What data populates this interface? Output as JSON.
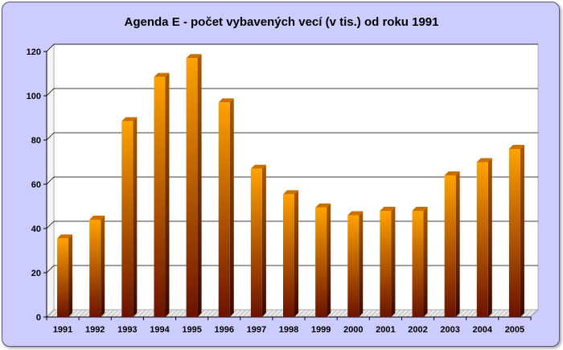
{
  "chart_data": {
    "type": "bar",
    "title": "Agenda E - počet vybavených vecí (v tis.) od roku 1991",
    "xlabel": "",
    "ylabel": "",
    "categories": [
      "1991",
      "1992",
      "1993",
      "1994",
      "1995",
      "1996",
      "1997",
      "1998",
      "1999",
      "2000",
      "2001",
      "2002",
      "2003",
      "2004",
      "2005"
    ],
    "values": [
      35.5,
      44,
      88.5,
      108.5,
      117,
      97,
      67,
      55.5,
      49.5,
      46,
      48,
      48,
      64,
      70,
      76
    ],
    "ylim": [
      0,
      120
    ],
    "yticks": [
      0,
      20,
      40,
      60,
      80,
      100,
      120
    ],
    "grid": true,
    "legend": "none",
    "colors": {
      "bar_top": "#ffa200",
      "bar_bottom": "#6b1200",
      "frame_bg": "#ccccff",
      "plot_bg": "#ffffff",
      "grid": "#000000"
    }
  }
}
